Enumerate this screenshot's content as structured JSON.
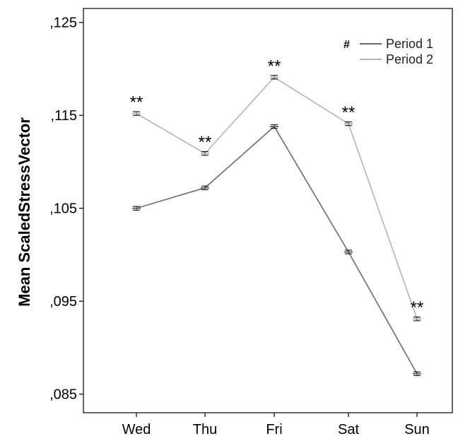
{
  "chart_data": {
    "type": "line",
    "xlabel": "",
    "ylabel": "Mean ScaledStressVector",
    "categories": [
      "Wed",
      "Thu",
      "Fri",
      "Sat",
      "Sun"
    ],
    "ylim": [
      0.083,
      0.1265
    ],
    "yticks": [
      0.085,
      0.095,
      0.105,
      0.115,
      0.125
    ],
    "ytick_labels": [
      ",085",
      ",095",
      ",105",
      ",115",
      ",125"
    ],
    "grid": false,
    "legend_position": "top-right",
    "legend_marker": "#",
    "series": [
      {
        "name": "Period 1",
        "color": "#6b6b6b",
        "values": [
          0.105,
          0.1072,
          0.1138,
          0.1003,
          0.0872
        ],
        "error": [
          0.0002,
          0.0002,
          0.0002,
          0.0002,
          0.0002
        ]
      },
      {
        "name": "Period 2",
        "color": "#b4b4b4",
        "values": [
          0.1152,
          0.1109,
          0.1191,
          0.1141,
          0.0931
        ],
        "error": [
          0.0002,
          0.0002,
          0.0002,
          0.0002,
          0.0002
        ]
      }
    ],
    "annotations": [
      {
        "category": "Wed",
        "text": "**"
      },
      {
        "category": "Thu",
        "text": "**"
      },
      {
        "category": "Fri",
        "text": "**"
      },
      {
        "category": "Sat",
        "text": "**"
      },
      {
        "category": "Sun",
        "text": "**"
      }
    ]
  }
}
